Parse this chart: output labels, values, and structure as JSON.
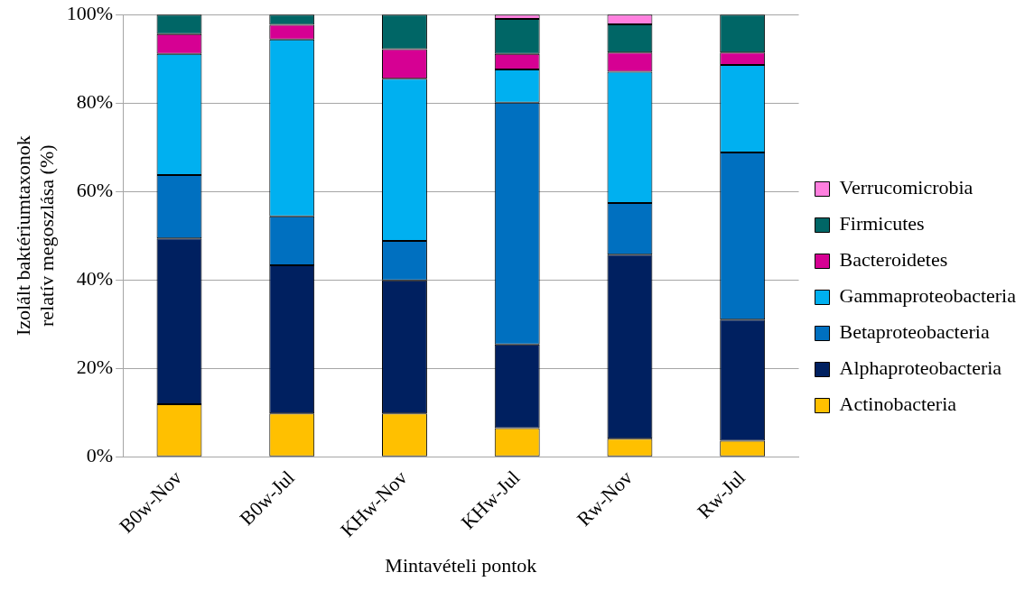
{
  "chart_data": {
    "type": "bar",
    "stacked": true,
    "xlabel": "Mintavételi pontok",
    "ylabel": "Izolált baktériumtaxonok relatív megoszlása (%)",
    "categories": [
      "B0w-Nov",
      "B0w-Jul",
      "KHw-Nov",
      "KHw-Jul",
      "Rw-Nov",
      "Rw-Jul"
    ],
    "series": [
      {
        "name": "Actinobacteria",
        "color": "#ffc000",
        "values": [
          11.9,
          9.8,
          9.8,
          6.5,
          4.1,
          3.6
        ]
      },
      {
        "name": "Alphaproteobacteria",
        "color": "#002060",
        "values": [
          37.5,
          33.5,
          30.1,
          18.9,
          41.6,
          27.4
        ]
      },
      {
        "name": "Betaproteobacteria",
        "color": "#0070c0",
        "values": [
          14.3,
          11.1,
          8.9,
          54.7,
          11.7,
          37.8
        ]
      },
      {
        "name": "Gammaproteobacteria",
        "color": "#00b0f0",
        "values": [
          27.4,
          40.0,
          36.7,
          7.5,
          29.7,
          19.8
        ]
      },
      {
        "name": "Bacteroidetes",
        "color": "#d60093",
        "values": [
          4.5,
          3.3,
          6.7,
          3.5,
          4.3,
          2.8
        ]
      },
      {
        "name": "Firmicutes",
        "color": "#006666",
        "values": [
          4.4,
          2.3,
          7.8,
          7.9,
          6.4,
          8.6
        ]
      },
      {
        "name": "Verrucomicrobia",
        "color": "#ff7fdf",
        "values": [
          0,
          0,
          0,
          1.0,
          2.2,
          0
        ]
      }
    ],
    "ylim": [
      0,
      100
    ],
    "yticks": [
      {
        "value": 0,
        "label": "0%"
      },
      {
        "value": 20,
        "label": "20%"
      },
      {
        "value": 40,
        "label": "40%"
      },
      {
        "value": 60,
        "label": "60%"
      },
      {
        "value": 80,
        "label": "80%"
      },
      {
        "value": 100,
        "label": "100%"
      }
    ],
    "grid": "y",
    "legend": "right"
  }
}
